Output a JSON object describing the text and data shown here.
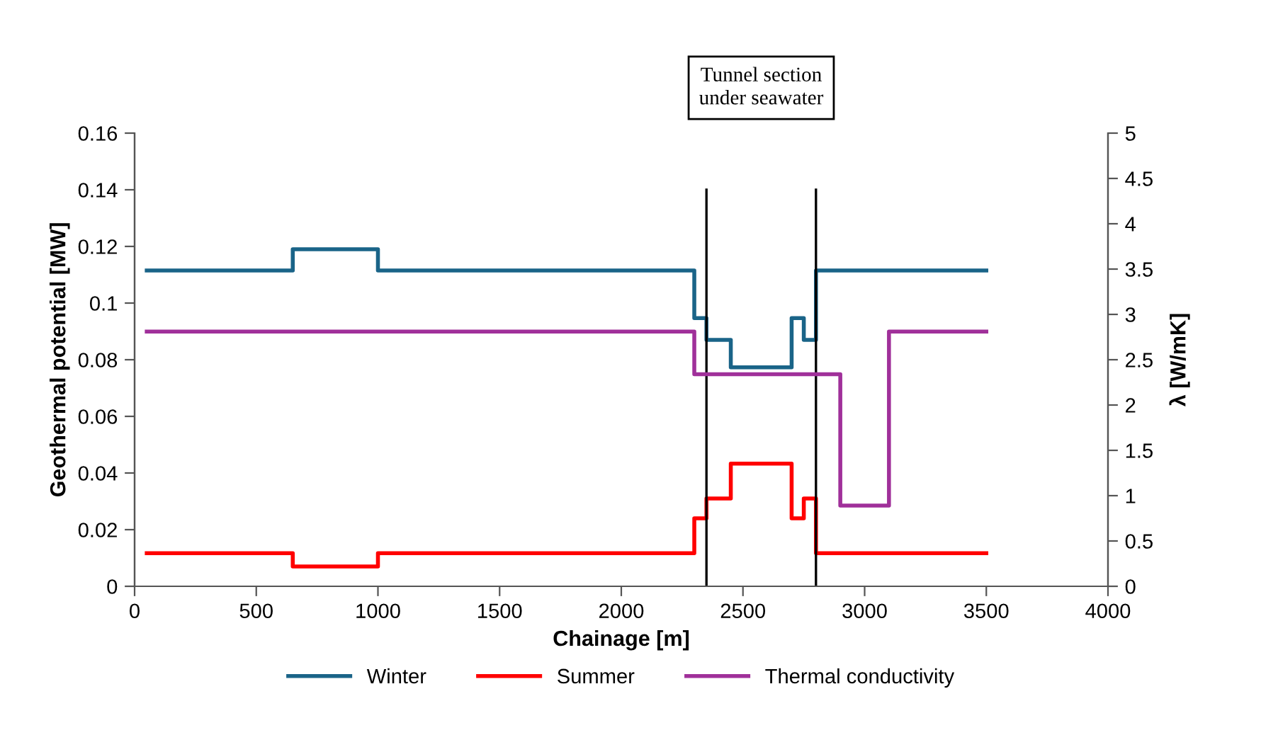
{
  "chart_data": {
    "type": "step",
    "xlabel": "Chainage [m]",
    "ylabel": "Geothermal potential [MW]",
    "y2label": "λ [W/mK]",
    "xlim": [
      0,
      4000
    ],
    "xticks": [
      0,
      500,
      1000,
      1500,
      2000,
      2500,
      3000,
      3500,
      4000
    ],
    "ylim": [
      0,
      0.16
    ],
    "yticks": [
      0,
      0.02,
      0.04,
      0.06,
      0.08,
      0.1,
      0.12,
      0.14,
      0.16
    ],
    "y2lim": [
      0,
      5
    ],
    "y2ticks": [
      0,
      0.5,
      1,
      1.5,
      2,
      2.5,
      3,
      3.5,
      4,
      4.5,
      5
    ],
    "series": [
      {
        "name": "Winter",
        "color": "#1a6488",
        "x": [
          50,
          650,
          1000,
          2300,
          2350,
          2450,
          2700,
          2750,
          2800,
          3500
        ],
        "values": [
          0.1115,
          0.119,
          0.1115,
          0.0947,
          0.087,
          0.0773,
          0.0947,
          0.087,
          0.1115,
          0.1115
        ]
      },
      {
        "name": "Summer",
        "color": "#ff0000",
        "x": [
          50,
          650,
          1000,
          2300,
          2350,
          2450,
          2700,
          2750,
          2800,
          3500
        ],
        "values": [
          0.0117,
          0.007,
          0.0117,
          0.024,
          0.031,
          0.0433,
          0.024,
          0.031,
          0.0117,
          0.0117
        ]
      },
      {
        "name": "Thermal conductivity",
        "color": "#a0309a",
        "axis": "y2",
        "x": [
          50,
          2300,
          2900,
          3100,
          3500
        ],
        "values": [
          2.81,
          2.34,
          0.89,
          2.81,
          2.81
        ]
      }
    ],
    "ref_lines": [
      {
        "axis": "x",
        "value": 2350,
        "color": "#000000"
      },
      {
        "axis": "x",
        "value": 2800,
        "color": "#000000"
      }
    ],
    "annotations": [
      "Tunnel section\nunder seawater"
    ],
    "grid": false,
    "legend": "bottom"
  }
}
